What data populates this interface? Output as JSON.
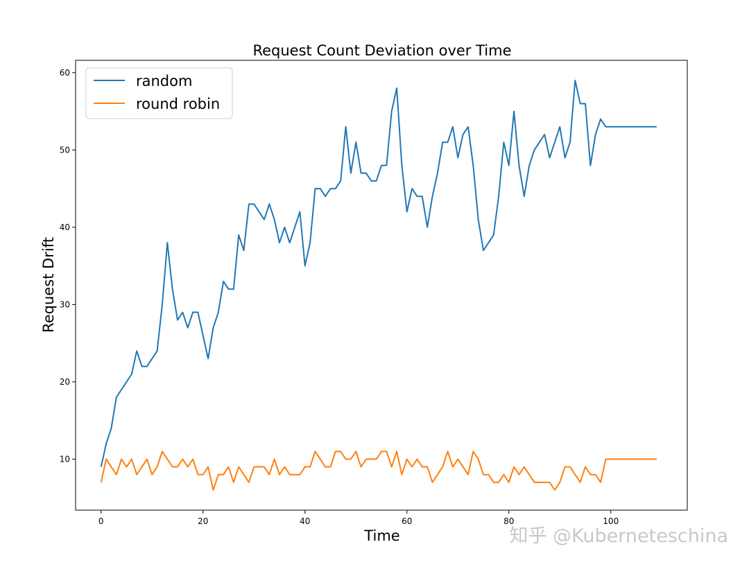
{
  "watermark": "知乎 @Kuberneteschina",
  "chart_data": {
    "type": "line",
    "title": "Request Count Deviation over Time",
    "xlabel": "Time",
    "ylabel": "Request Drift",
    "xlim": [
      -5,
      115
    ],
    "ylim": [
      3.4,
      61.6
    ],
    "xticks": [
      0,
      20,
      40,
      60,
      80,
      100
    ],
    "yticks": [
      10,
      20,
      30,
      40,
      50,
      60
    ],
    "grid": false,
    "legend_position": "upper-left",
    "series": [
      {
        "name": "random",
        "color": "#1f77b4",
        "values": [
          9,
          12,
          14,
          18,
          19,
          20,
          21,
          24,
          22,
          22,
          23,
          24,
          30,
          38,
          32,
          28,
          29,
          27,
          29,
          29,
          26,
          23,
          27,
          29,
          33,
          32,
          32,
          39,
          37,
          43,
          43,
          42,
          41,
          43,
          41,
          38,
          40,
          38,
          40,
          42,
          35,
          38,
          45,
          45,
          44,
          45,
          45,
          46,
          53,
          47,
          51,
          47,
          47,
          46,
          46,
          48,
          48,
          55,
          58,
          48,
          42,
          45,
          44,
          44,
          40,
          44,
          47,
          51,
          51,
          53,
          49,
          52,
          53,
          48,
          41,
          37,
          38,
          39,
          44,
          51,
          48,
          55,
          48,
          44,
          48,
          50,
          51,
          52,
          49,
          51,
          53,
          49,
          51,
          59,
          56,
          56,
          48,
          52,
          54,
          53,
          53,
          53,
          53,
          53,
          53,
          53,
          53,
          53,
          53,
          53
        ]
      },
      {
        "name": "round robin",
        "color": "#ff7f0e",
        "values": [
          7,
          10,
          9,
          8,
          10,
          9,
          10,
          8,
          9,
          10,
          8,
          9,
          11,
          10,
          9,
          9,
          10,
          9,
          10,
          8,
          8,
          9,
          6,
          8,
          8,
          9,
          7,
          9,
          8,
          7,
          9,
          9,
          9,
          8,
          10,
          8,
          9,
          8,
          8,
          8,
          9,
          9,
          11,
          10,
          9,
          9,
          11,
          11,
          10,
          10,
          11,
          9,
          10,
          10,
          10,
          11,
          11,
          9,
          11,
          8,
          10,
          9,
          10,
          9,
          9,
          7,
          8,
          9,
          11,
          9,
          10,
          9,
          8,
          11,
          10,
          8,
          8,
          7,
          7,
          8,
          7,
          9,
          8,
          9,
          8,
          7,
          7,
          7,
          7,
          6,
          7,
          9,
          9,
          8,
          7,
          9,
          8,
          8,
          7,
          10,
          10,
          10,
          10,
          10,
          10,
          10,
          10,
          10,
          10,
          10
        ]
      }
    ]
  }
}
